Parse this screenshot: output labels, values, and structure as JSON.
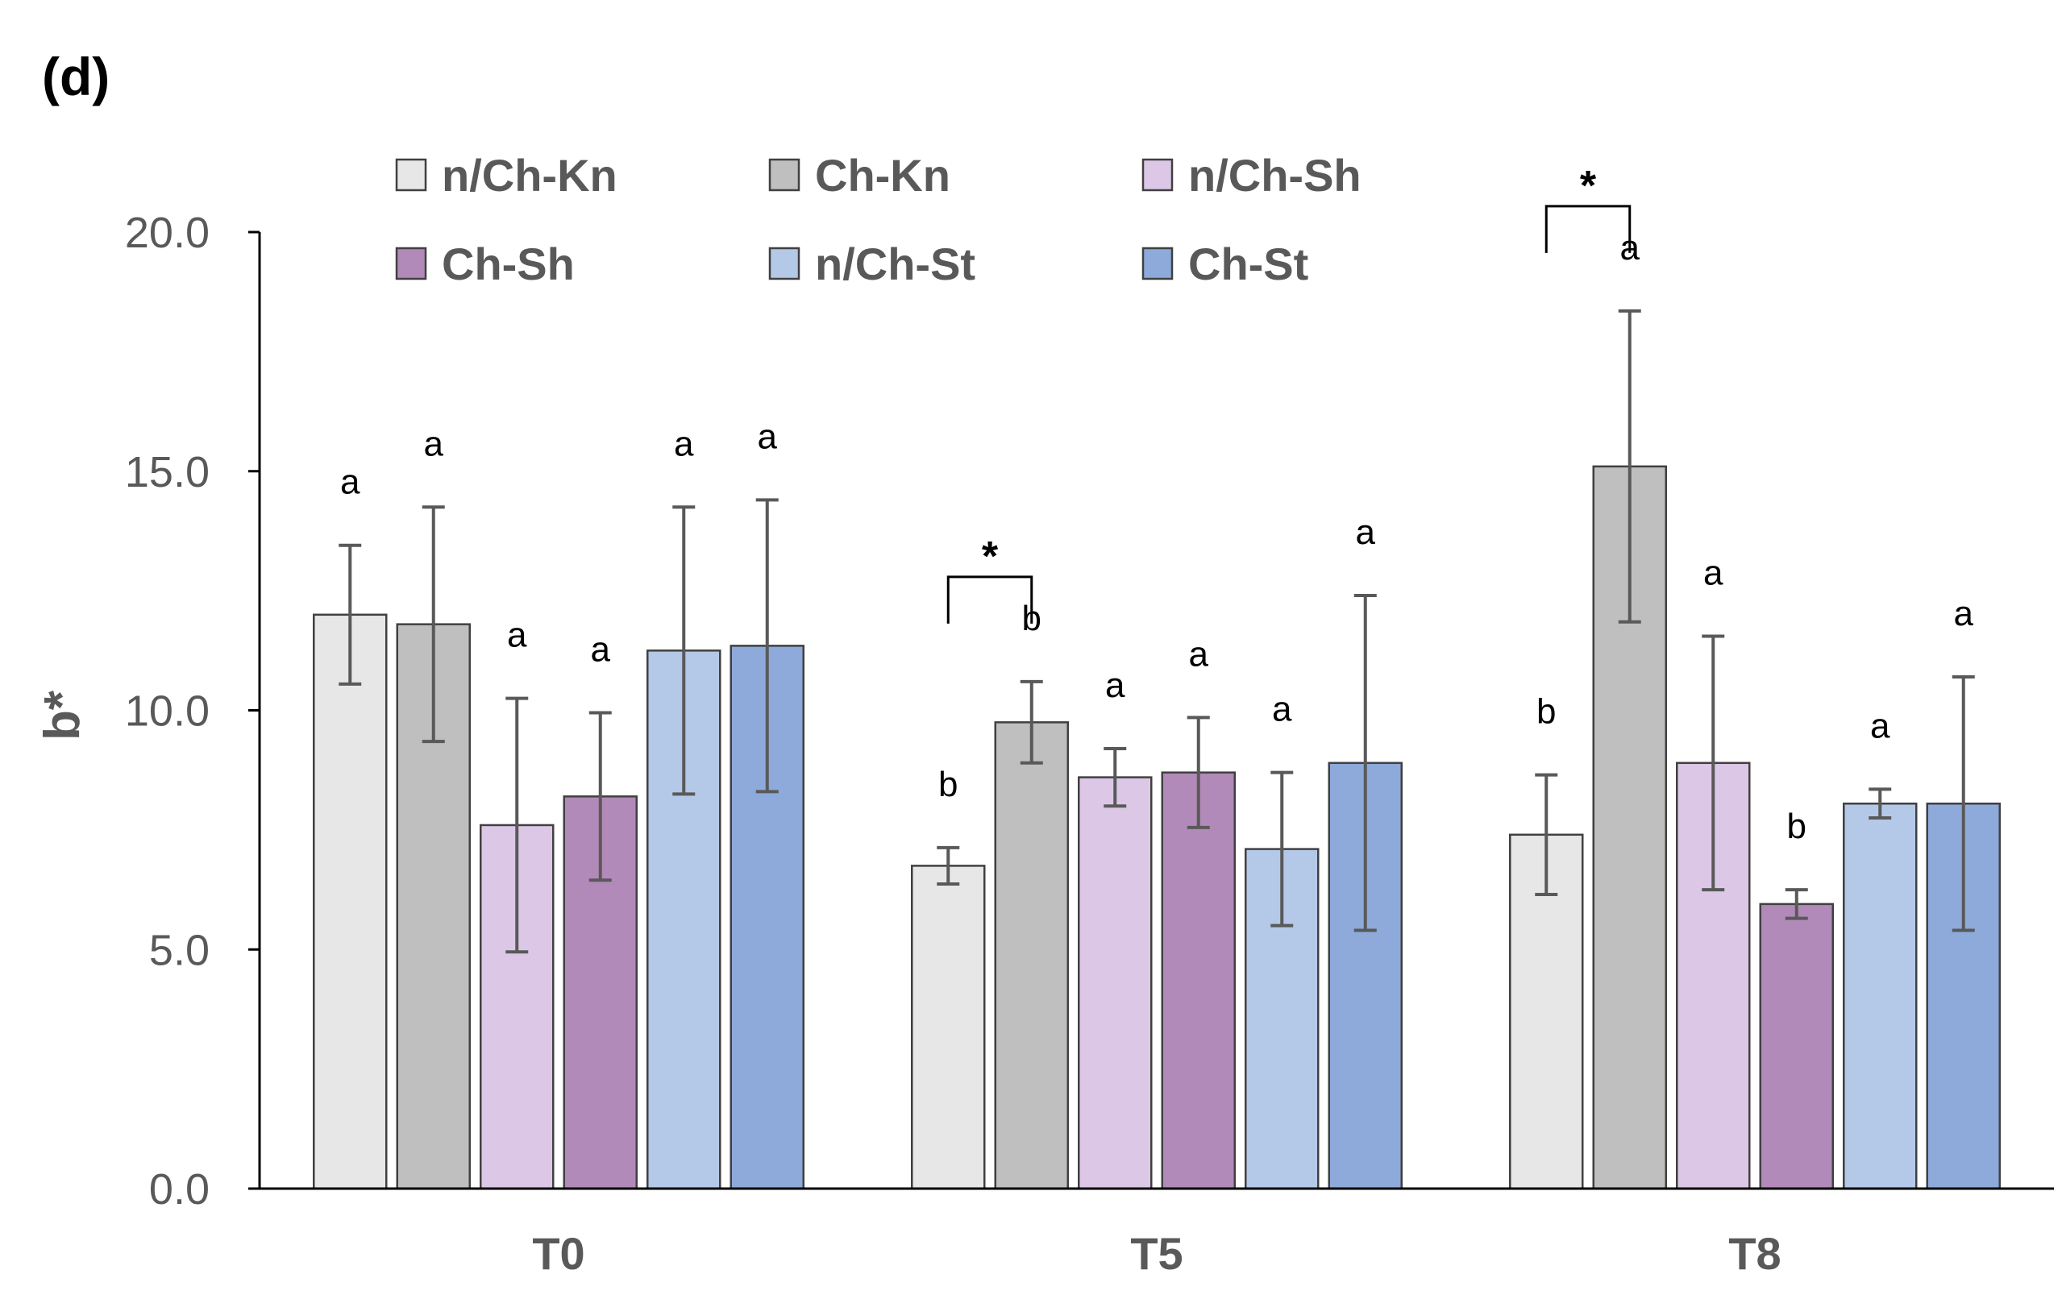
{
  "panel_label": "(d)",
  "chart_data": {
    "type": "bar",
    "title": "",
    "xlabel": "",
    "ylabel": "b*",
    "ylim": [
      0,
      20
    ],
    "yticks": [
      "0.0",
      "5.0",
      "10.0",
      "15.0",
      "20.0"
    ],
    "categories": [
      "T0",
      "T5",
      "T8"
    ],
    "series": [
      {
        "name": "n/Ch-Kn",
        "color": "#e7e7e7",
        "values": [
          12.0,
          6.75,
          7.4
        ],
        "errors": [
          1.45,
          0.38,
          1.25
        ],
        "labels": [
          "a",
          "b",
          "b"
        ]
      },
      {
        "name": "Ch-Kn",
        "color": "#bfbfbf",
        "values": [
          11.8,
          9.75,
          15.1
        ],
        "errors": [
          2.45,
          0.85,
          3.25
        ],
        "labels": [
          "a",
          "b",
          "a"
        ]
      },
      {
        "name": "n/Ch-Sh",
        "color": "#dcc8e6",
        "values": [
          7.6,
          8.6,
          8.9
        ],
        "errors": [
          2.65,
          0.6,
          2.65
        ],
        "labels": [
          "a",
          "a",
          "a"
        ]
      },
      {
        "name": "Ch-Sh",
        "color": "#b28ab9",
        "values": [
          8.2,
          8.7,
          5.95
        ],
        "errors": [
          1.75,
          1.15,
          0.3
        ],
        "labels": [
          "a",
          "a",
          "b"
        ]
      },
      {
        "name": "n/Ch-St",
        "color": "#b4c8e8",
        "values": [
          11.25,
          7.1,
          8.05
        ],
        "errors": [
          3.0,
          1.6,
          0.3
        ],
        "labels": [
          "a",
          "a",
          "a"
        ]
      },
      {
        "name": "Ch-St",
        "color": "#8eaadb",
        "values": [
          11.35,
          8.9,
          8.05
        ],
        "errors": [
          3.05,
          3.5,
          2.65
        ],
        "labels": [
          "a",
          "a",
          "a"
        ]
      }
    ],
    "significance": [
      {
        "category": "T5",
        "from_series": 0,
        "to_series": 1,
        "symbol": "*"
      },
      {
        "category": "T8",
        "from_series": 0,
        "to_series": 1,
        "symbol": "*"
      }
    ],
    "legend": {
      "position": "top",
      "columns": 3
    }
  }
}
